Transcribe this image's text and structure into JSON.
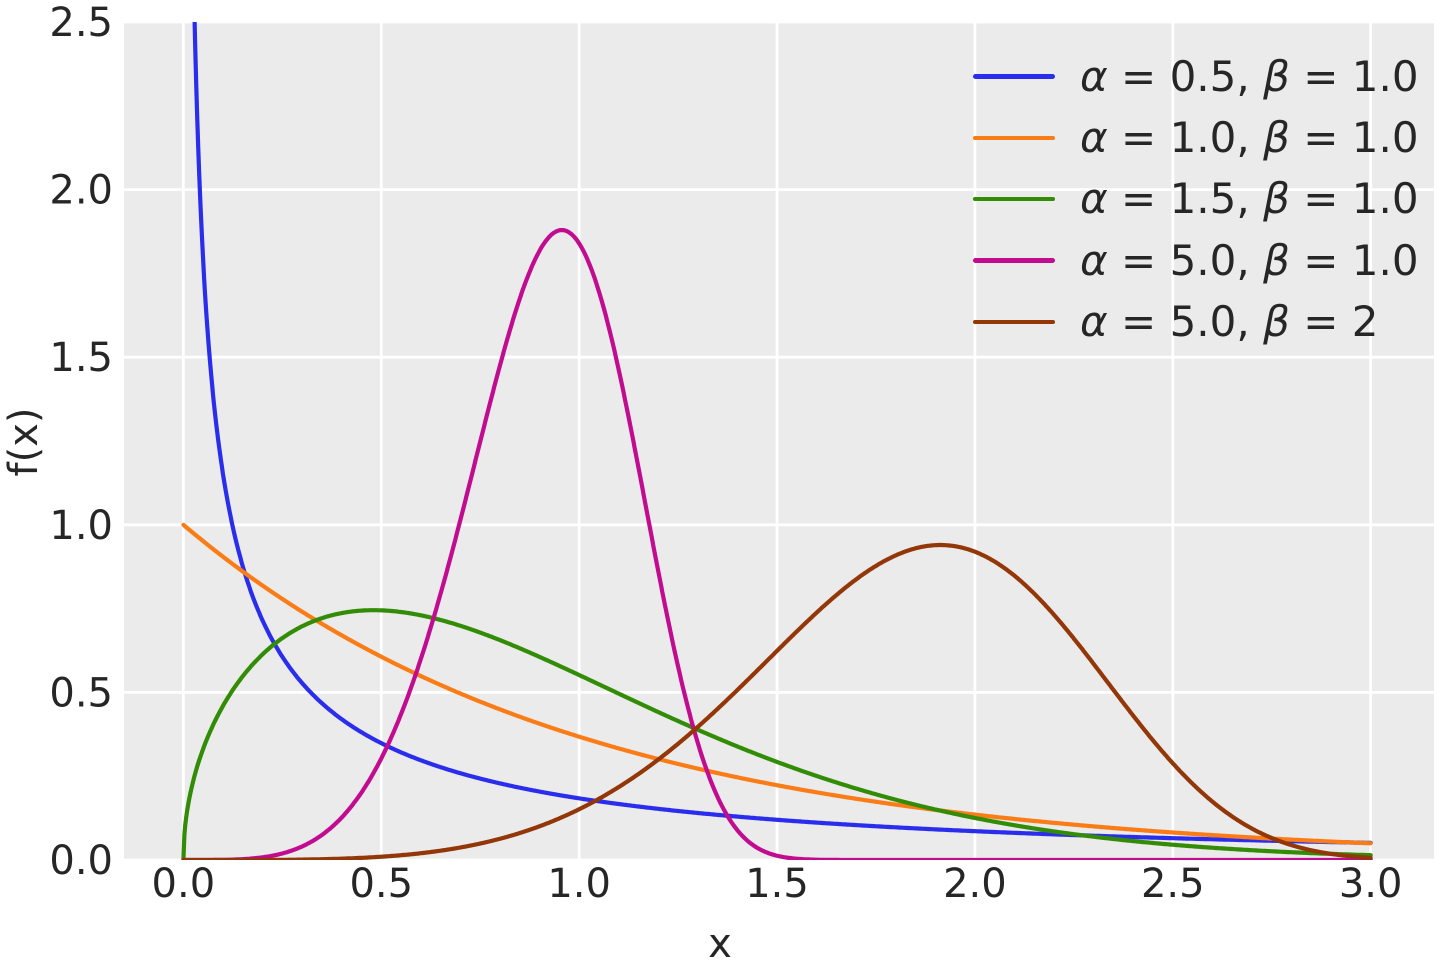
{
  "chart_data": {
    "type": "line",
    "title": "",
    "xlabel": "x",
    "ylabel": "f(x)",
    "xlim": [
      -0.15,
      3.16
    ],
    "ylim": [
      0.0,
      2.5
    ],
    "x_ticks": [
      0.0,
      0.5,
      1.0,
      1.5,
      2.0,
      2.5,
      3.0
    ],
    "y_ticks": [
      0.0,
      0.5,
      1.0,
      1.5,
      2.0,
      2.5
    ],
    "grid": true,
    "legend_position": "upper right",
    "legend_frame": false,
    "style": {
      "axes_background": "#ebebeb",
      "grid_color": "#ffffff",
      "text_color": "#262626",
      "figure_background": "#ffffff"
    },
    "distribution": "weibull-pdf",
    "pdf_formula": "f(x) = (alpha/beta)*(x/beta)^(alpha-1)*exp(-(x/beta)^alpha)",
    "x_data_range": [
      0.0,
      3.0
    ],
    "series": [
      {
        "label": "α = 0.5, β = 1.0",
        "alpha": 0.5,
        "beta": 1.0,
        "color": "#2a2eec",
        "shape_note": "monotone decreasing, diverges as x approaches 0, f(3) = 0.05"
      },
      {
        "label": "α = 1.0, β = 1.0",
        "alpha": 1.0,
        "beta": 1.0,
        "color": "#fa7c17",
        "shape_note": "exponential decay from f(0) = 1.0, f(3) = 0.05"
      },
      {
        "label": "α = 1.5, β = 1.0",
        "alpha": 1.5,
        "beta": 1.0,
        "color": "#328c06",
        "peak": {
          "x": 0.48,
          "y": 0.74
        }
      },
      {
        "label": "α = 5.0, β = 1.0",
        "alpha": 5.0,
        "beta": 1.0,
        "color": "#c10c90",
        "peak": {
          "x": 0.96,
          "y": 1.88
        }
      },
      {
        "label": "α = 5.0, β = 2",
        "alpha": 5.0,
        "beta": 2.0,
        "color": "#933708",
        "peak": {
          "x": 1.91,
          "y": 0.94
        }
      }
    ]
  }
}
